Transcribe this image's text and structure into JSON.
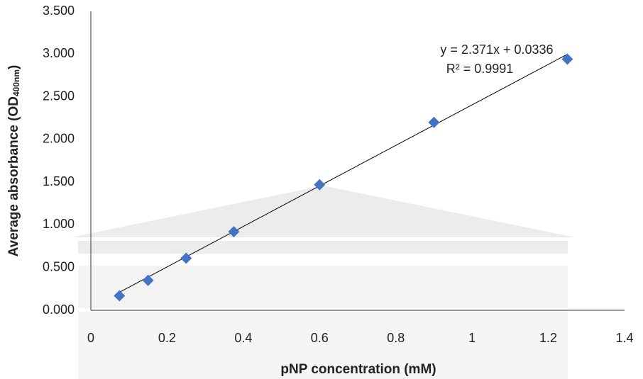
{
  "chart_data": {
    "type": "scatter",
    "x_label": "pNP concentration (mM)",
    "y_label": "Average absorbance (OD",
    "y_label_sub": "400nm",
    "y_label_end": ")",
    "x": [
      0.075,
      0.15,
      0.25,
      0.375,
      0.6,
      0.9,
      1.25
    ],
    "values": [
      0.17,
      0.35,
      0.61,
      0.92,
      1.47,
      2.2,
      2.94
    ],
    "color": "#4472c4",
    "xlim": [
      0,
      1.4
    ],
    "xticks": [
      0,
      0.2,
      0.4,
      0.6,
      0.8,
      1,
      1.2,
      1.4
    ],
    "ylim": [
      0,
      3.5
    ],
    "yticks": [
      {
        "value": 0,
        "label": "0.000"
      },
      {
        "value": 0.5,
        "label": "0.500"
      },
      {
        "value": 1,
        "label": "1.000"
      },
      {
        "value": 1.5,
        "label": "1.500"
      },
      {
        "value": 2,
        "label": "2.000"
      },
      {
        "value": 2.5,
        "label": "2.500"
      },
      {
        "value": 3,
        "label": "3.000"
      },
      {
        "value": 3.5,
        "label": "3.500"
      }
    ],
    "grid": false,
    "trendline": {
      "slope": 2.371,
      "intercept": 0.0336,
      "equation": "y = 2.371x + 0.0336",
      "r_squared": "R² = 0.9991"
    }
  }
}
